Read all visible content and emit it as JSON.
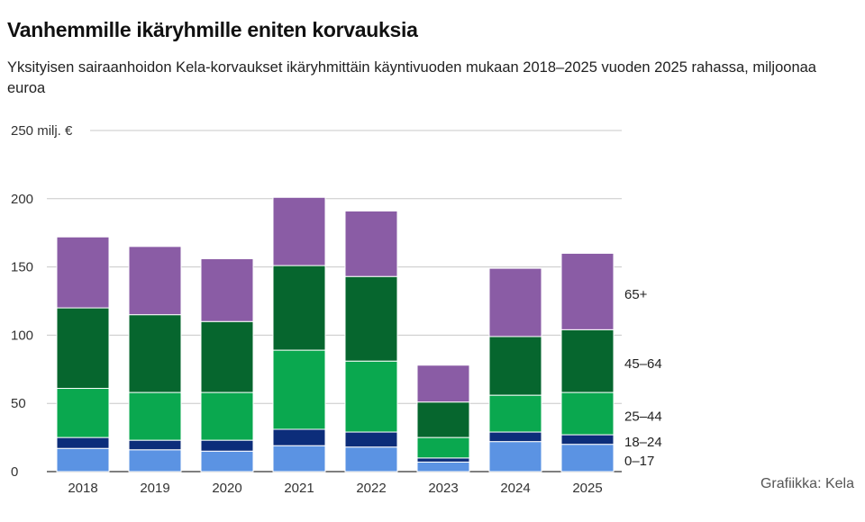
{
  "header": {
    "title": "Vanhemmille ikäryhmille eniten korvauksia",
    "subtitle": "Yksityisen sairaanhoidon Kela-korvaukset ikäryhmittäin käyntivuoden mukaan 2018–2025 vuoden 2025 rahassa, miljoonaa euroa"
  },
  "footer": {
    "credit": "Grafiikka: Kela"
  },
  "chart_data": {
    "type": "bar",
    "stacked": true,
    "title": "Vanhemmille ikäryhmille eniten korvauksia",
    "subtitle": "Yksityisen sairaanhoidon Kela-korvaukset ikäryhmittäin käyntivuoden mukaan 2018–2025 vuoden 2025 rahassa, miljoonaa euroa",
    "categories": [
      "2018",
      "2019",
      "2020",
      "2021",
      "2022",
      "2023",
      "2024",
      "2025"
    ],
    "series": [
      {
        "name": "0–17",
        "color": "#5b93e3",
        "values": [
          17,
          16,
          15,
          19,
          18,
          7,
          22,
          20
        ]
      },
      {
        "name": "18–24",
        "color": "#0c2d7a",
        "values": [
          8,
          7,
          8,
          12,
          11,
          3,
          7,
          7
        ]
      },
      {
        "name": "25–44",
        "color": "#0aa84f",
        "values": [
          36,
          35,
          35,
          58,
          52,
          15,
          27,
          31
        ]
      },
      {
        "name": "45–64",
        "color": "#06662e",
        "values": [
          59,
          57,
          52,
          62,
          62,
          26,
          43,
          46
        ]
      },
      {
        "name": "65+",
        "color": "#8a5ca5",
        "values": [
          52,
          50,
          46,
          50,
          48,
          27,
          50,
          56
        ]
      }
    ],
    "ylim": [
      0,
      250
    ],
    "yticks": [
      0,
      50,
      100,
      150,
      200,
      250
    ],
    "ytick_labels": [
      "0",
      "50",
      "100",
      "150",
      "200",
      "250 milj. €"
    ],
    "xlabel": "",
    "ylabel": "",
    "grid": true,
    "legend": "right, labels aligned with the 2025 stack"
  }
}
